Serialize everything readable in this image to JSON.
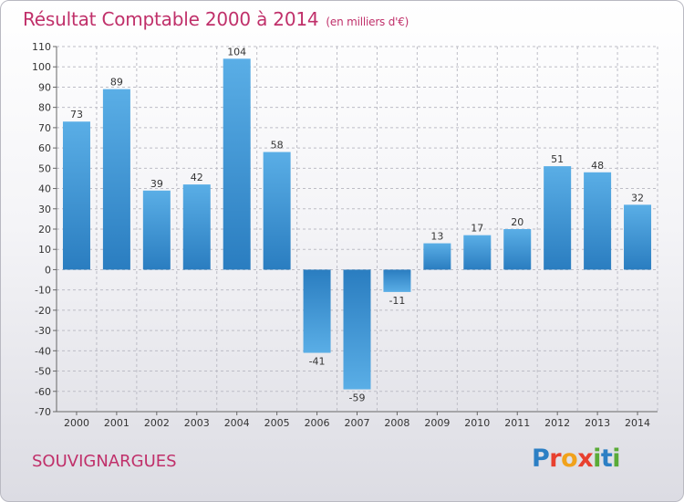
{
  "header": {
    "title": "Résultat Comptable 2000 à 2014",
    "unit_note": "(en milliers d'€)"
  },
  "footer": {
    "location": "SOUVIGNARGUES",
    "logo_letters": [
      "P",
      "r",
      "o",
      "x",
      "i",
      "t",
      "i"
    ],
    "logo_colors": [
      "#2c7fc4",
      "#e8402f",
      "#f1a21b",
      "#e8402f",
      "#5aab37",
      "#2c7fc4",
      "#5aab37"
    ]
  },
  "colors": {
    "title": "#c0306a",
    "bar_light": "#5aaee6",
    "bar_dark": "#2a7dc0",
    "grid": "#bdbdc6"
  },
  "chart_data": {
    "type": "bar",
    "title": "Résultat Comptable 2000 à 2014",
    "ylabel": "",
    "xlabel": "",
    "ylim": [
      -70,
      110
    ],
    "ytick_step": 10,
    "grid": true,
    "categories": [
      "2000",
      "2001",
      "2002",
      "2003",
      "2004",
      "2005",
      "2006",
      "2007",
      "2008",
      "2009",
      "2010",
      "2011",
      "2012",
      "2013",
      "2014"
    ],
    "values": [
      73,
      89,
      39,
      42,
      104,
      58,
      -41,
      -59,
      -11,
      13,
      17,
      20,
      51,
      48,
      32
    ]
  }
}
